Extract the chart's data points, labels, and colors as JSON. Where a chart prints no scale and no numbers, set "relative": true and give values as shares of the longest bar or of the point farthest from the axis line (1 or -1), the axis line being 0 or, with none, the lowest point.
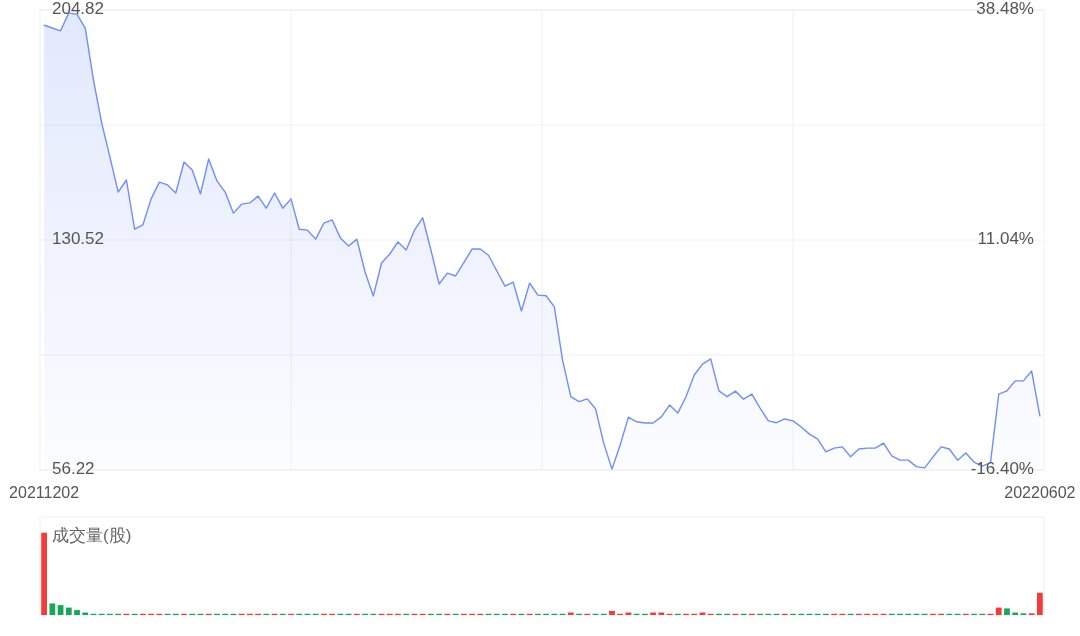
{
  "chart_data": [
    {
      "type": "area",
      "color": "#6f8ef7",
      "grid": true,
      "categories": [
        "20211202",
        null,
        null,
        null,
        null,
        null,
        null,
        null,
        null,
        null,
        null,
        null,
        null,
        null,
        null,
        null,
        null,
        null,
        null,
        null,
        null,
        null,
        null,
        null,
        null,
        null,
        null,
        null,
        null,
        null,
        null,
        null,
        null,
        null,
        null,
        null,
        null,
        null,
        null,
        null,
        null,
        null,
        null,
        null,
        null,
        null,
        null,
        null,
        null,
        null,
        null,
        null,
        null,
        null,
        null,
        null,
        null,
        null,
        null,
        null,
        null,
        null,
        null,
        null,
        null,
        null,
        null,
        null,
        null,
        null,
        null,
        null,
        null,
        null,
        null,
        null,
        null,
        null,
        null,
        null,
        null,
        null,
        null,
        null,
        null,
        null,
        null,
        null,
        null,
        null,
        null,
        null,
        null,
        null,
        null,
        null,
        null,
        null,
        null,
        null,
        null,
        null,
        null,
        null,
        null,
        null,
        null,
        null,
        null,
        null,
        null,
        null,
        null,
        null,
        null,
        null,
        null,
        null,
        null,
        null,
        null,
        "20220602"
      ],
      "values": [
        199.9,
        199.0,
        198.1,
        203.9,
        203.4,
        199.0,
        182.2,
        168.3,
        157.3,
        146.0,
        149.9,
        134.0,
        135.4,
        143.8,
        149.2,
        148.3,
        145.7,
        155.7,
        153.1,
        145.4,
        156.7,
        149.6,
        146.0,
        139.2,
        142.1,
        142.5,
        144.7,
        140.8,
        145.7,
        140.8,
        143.8,
        134.0,
        133.7,
        130.8,
        136.0,
        137.0,
        131.2,
        128.6,
        130.8,
        120.2,
        112.4,
        123.1,
        126.0,
        129.9,
        127.3,
        133.7,
        137.7,
        127.3,
        116.3,
        119.8,
        118.9,
        123.2,
        127.6,
        127.6,
        125.6,
        120.6,
        115.6,
        116.9,
        107.6,
        116.6,
        112.7,
        112.5,
        108.9,
        91.7,
        79.9,
        78.3,
        79.2,
        76.0,
        64.9,
        56.5,
        64.3,
        73.3,
        71.8,
        71.4,
        71.4,
        73.4,
        77.2,
        74.6,
        79.9,
        86.9,
        90.4,
        92.1,
        81.8,
        79.9,
        81.7,
        79.1,
        80.7,
        76.2,
        72.1,
        71.5,
        72.7,
        72.1,
        70.1,
        67.8,
        66.2,
        62.1,
        63.3,
        63.7,
        60.5,
        63.0,
        63.3,
        63.3,
        64.9,
        60.8,
        59.4,
        59.4,
        57.3,
        56.9,
        60.4,
        63.7,
        63.0,
        59.4,
        61.7,
        58.8,
        57.5,
        58.6,
        80.7,
        81.8,
        85.0,
        85.0,
        88.2,
        73.7
      ],
      "ylim": [
        56.22,
        204.82
      ],
      "yticks": [
        56.22,
        {
          "value": 93.37,
          "label": null
        },
        130.52,
        {
          "value": 167.67,
          "label": null
        },
        204.82
      ],
      "y2lim": [
        -16.4,
        38.48
      ],
      "y2ticks": [
        {
          "value": -16.4,
          "label": "-16.40%"
        },
        {
          "value": 11.04,
          "label": "11.04%"
        },
        {
          "value": 38.48,
          "label": "38.48%"
        }
      ]
    },
    {
      "type": "bar",
      "title": "成交量(股)",
      "relative": true,
      "categories": [
        null,
        null,
        null,
        null,
        null,
        null,
        null,
        null,
        null,
        null,
        null,
        null,
        null,
        null,
        null,
        null,
        null,
        null,
        null,
        null,
        null,
        null,
        null,
        null,
        null,
        null,
        null,
        null,
        null,
        null,
        null,
        null,
        null,
        null,
        null,
        null,
        null,
        null,
        null,
        null,
        null,
        null,
        null,
        null,
        null,
        null,
        null,
        null,
        null,
        null,
        null,
        null,
        null,
        null,
        null,
        null,
        null,
        null,
        null,
        null,
        null,
        null,
        null,
        null,
        null,
        null,
        null,
        null,
        null,
        null,
        null,
        null,
        null,
        null,
        null,
        null,
        null,
        null,
        null,
        null,
        null,
        null,
        null,
        null,
        null,
        null,
        null,
        null,
        null,
        null,
        null,
        null,
        null,
        null,
        null,
        null,
        null,
        null,
        null,
        null,
        null,
        null,
        null,
        null,
        null,
        null,
        null,
        null,
        null,
        null,
        null,
        null,
        null,
        null,
        null,
        null,
        null,
        null,
        null,
        null,
        null,
        null
      ],
      "values": [
        1,
        0.14,
        0.12,
        0.09,
        0.06,
        0.03,
        0.015,
        0.015,
        0.015,
        0.015,
        0.015,
        0.015,
        0.015,
        0.015,
        0.015,
        0.015,
        0.015,
        0.015,
        0.015,
        0.015,
        0.015,
        0.015,
        0.015,
        0.015,
        0.015,
        0.015,
        0.015,
        0.015,
        0.015,
        0.015,
        0.015,
        0.015,
        0.015,
        0.015,
        0.015,
        0.015,
        0.015,
        0.015,
        0.015,
        0.015,
        0.015,
        0.015,
        0.015,
        0.015,
        0.015,
        0.015,
        0.015,
        0.015,
        0.015,
        0.015,
        0.015,
        0.015,
        0.015,
        0.015,
        0.015,
        0.015,
        0.015,
        0.015,
        0.015,
        0.015,
        0.015,
        0.015,
        0.015,
        0.015,
        0.03,
        0.015,
        0.015,
        0.015,
        0.015,
        0.05,
        0.015,
        0.03,
        0.015,
        0.015,
        0.03,
        0.03,
        0.015,
        0.015,
        0.015,
        0.015,
        0.03,
        0.015,
        0.015,
        0.015,
        0.015,
        0.015,
        0.015,
        0.015,
        0.015,
        0.015,
        0.015,
        0.015,
        0.015,
        0.015,
        0.015,
        0.015,
        0.015,
        0.015,
        0.015,
        0.015,
        0.015,
        0.015,
        0.015,
        0.015,
        0.015,
        0.015,
        0.015,
        0.015,
        0.015,
        0.015,
        0.015,
        0.015,
        0.015,
        0.015,
        0.015,
        0.015,
        0.09,
        0.08,
        0.03,
        0.02,
        0.02,
        0.27
      ],
      "colors": [
        "#f53a3a",
        "#16a75c",
        "#16a75c",
        "#16a75c",
        "#16a75c",
        "#16a75c",
        "#16a75c",
        "#16a75c",
        "#16a75c",
        "#16a75c",
        "#f53a3a",
        "#16a75c",
        "#f53a3a",
        "#f53a3a",
        "#f53a3a",
        "#16a75c",
        "#16a75c",
        "#f53a3a",
        "#16a75c",
        "#16a75c",
        "#f53a3a",
        "#16a75c",
        "#16a75c",
        "#16a75c",
        "#f53a3a",
        "#f53a3a",
        "#f53a3a",
        "#16a75c",
        "#f53a3a",
        "#16a75c",
        "#f53a3a",
        "#16a75c",
        "#16a75c",
        "#16a75c",
        "#f53a3a",
        "#f53a3a",
        "#16a75c",
        "#16a75c",
        "#f53a3a",
        "#16a75c",
        "#16a75c",
        "#f53a3a",
        "#f53a3a",
        "#f53a3a",
        "#16a75c",
        "#f53a3a",
        "#f53a3a",
        "#16a75c",
        "#16a75c",
        "#f53a3a",
        "#16a75c",
        "#f53a3a",
        "#f53a3a",
        "#f53a3a",
        "#16a75c",
        "#16a75c",
        "#16a75c",
        "#f53a3a",
        "#16a75c",
        "#f53a3a",
        "#16a75c",
        "#16a75c",
        "#16a75c",
        "#16a75c",
        "#f53a3a",
        "#16a75c",
        "#f53a3a",
        "#16a75c",
        "#16a75c",
        "#f53a3a",
        "#f53a3a",
        "#f53a3a",
        "#16a75c",
        "#16a75c",
        "#f53a3a",
        "#f53a3a",
        "#f53a3a",
        "#16a75c",
        "#f53a3a",
        "#f53a3a",
        "#f53a3a",
        "#f53a3a",
        "#16a75c",
        "#16a75c",
        "#f53a3a",
        "#16a75c",
        "#f53a3a",
        "#16a75c",
        "#16a75c",
        "#16a75c",
        "#f53a3a",
        "#16a75c",
        "#16a75c",
        "#16a75c",
        "#16a75c",
        "#16a75c",
        "#f53a3a",
        "#f53a3a",
        "#16a75c",
        "#f53a3a",
        "#f53a3a",
        "#f53a3a",
        "#f53a3a",
        "#16a75c",
        "#16a75c",
        "#16a75c",
        "#16a75c",
        "#16a75c",
        "#f53a3a",
        "#f53a3a",
        "#16a75c",
        "#16a75c",
        "#f53a3a",
        "#16a75c",
        "#16a75c",
        "#f53a3a",
        "#f53a3a",
        "#16a75c",
        "#16a75c",
        "#16a75c",
        "#f53a3a",
        "#f53a3a"
      ]
    }
  ]
}
